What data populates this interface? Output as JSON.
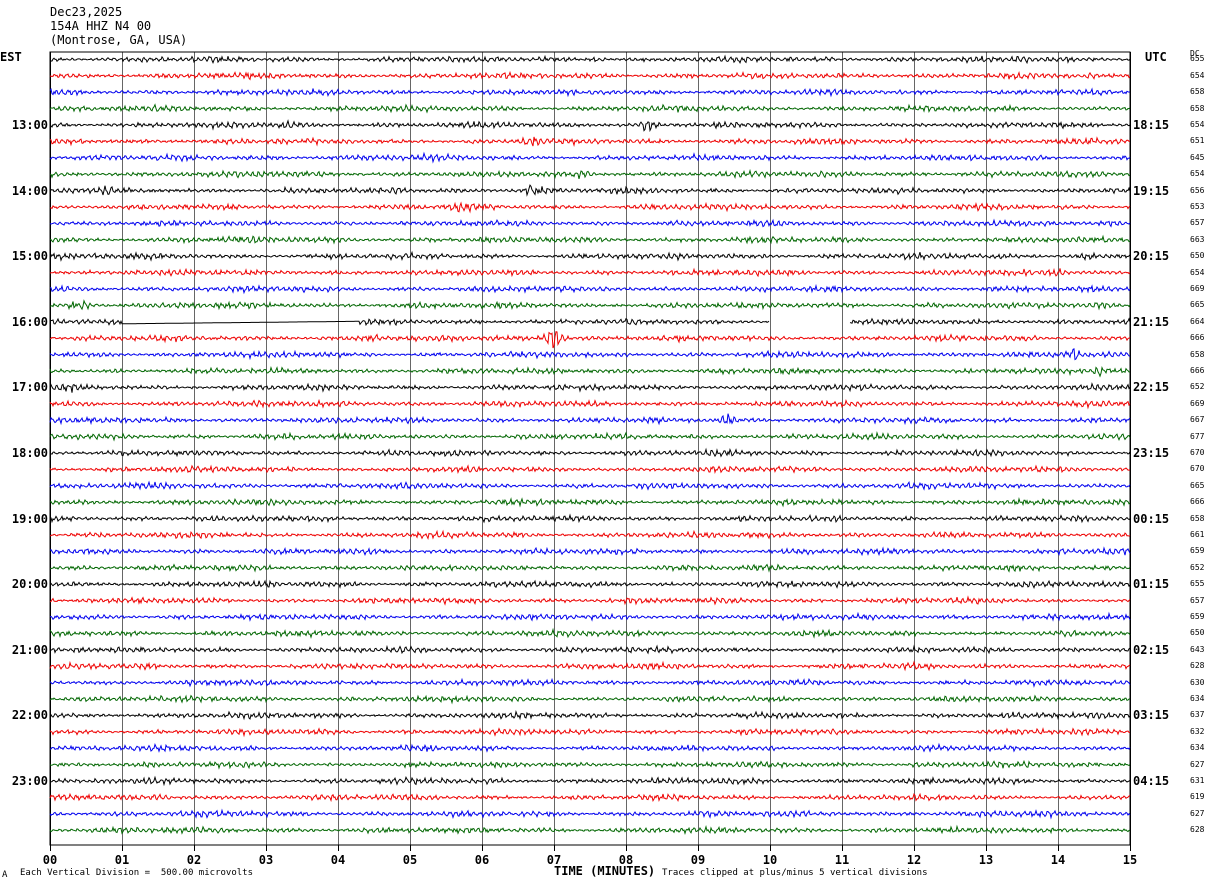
{
  "header": {
    "date": "Dec23,2025",
    "station": "154A HHZ N4 00",
    "location": "(Montrose, GA, USA)",
    "left_zone": "EST",
    "right_zone": "UTC",
    "dc_label": "DC"
  },
  "footer": {
    "vertical_division": "Each Vertical Division =  500.00 microvolts",
    "clip_note": "Traces clipped at plus/minus 5 vertical divisions",
    "corner_mark": "A"
  },
  "colors": {
    "palette": [
      "#000000",
      "#ee0000",
      "#0000ee",
      "#006600"
    ],
    "grid": "#000000"
  },
  "chart_data": {
    "type": "line",
    "title": "154A HHZ N4 00",
    "xlabel": "TIME (MINUTES)",
    "x_ticks": [
      "00",
      "01",
      "02",
      "03",
      "04",
      "05",
      "06",
      "07",
      "08",
      "09",
      "10",
      "11",
      "12",
      "13",
      "14",
      "15"
    ],
    "xlim": [
      0,
      15
    ],
    "trace_minutes": 15,
    "hour_labels_left": [
      "13:00",
      "14:00",
      "15:00",
      "16:00",
      "17:00",
      "18:00",
      "19:00",
      "20:00",
      "21:00",
      "22:00",
      "23:00"
    ],
    "hour_labels_right": [
      "18:15",
      "19:15",
      "20:15",
      "21:15",
      "22:15",
      "23:15",
      "00:15",
      "01:15",
      "02:15",
      "03:15",
      "04:15"
    ],
    "first_hour_label_row": 4,
    "dc_offsets": [
      655,
      654,
      658,
      658,
      654,
      651,
      645,
      654,
      656,
      653,
      657,
      663,
      650,
      654,
      669,
      665,
      664,
      666,
      658,
      666,
      652,
      669,
      667,
      677,
      670,
      670,
      665,
      666,
      658,
      661,
      659,
      652,
      655,
      657,
      659,
      650,
      643,
      628,
      630,
      634,
      637,
      632,
      634,
      627,
      631,
      619,
      627,
      628
    ],
    "events": [
      {
        "row": 0,
        "minute": 7.6,
        "amp": 1.6
      },
      {
        "row": 0,
        "minute": 13.5,
        "amp": 1.4
      },
      {
        "row": 4,
        "minute": 3.3,
        "amp": 1.5
      },
      {
        "row": 4,
        "minute": 8.3,
        "amp": 2.6
      },
      {
        "row": 5,
        "minute": 6.7,
        "amp": 2.2
      },
      {
        "row": 6,
        "minute": 5.2,
        "amp": 1.8
      },
      {
        "row": 7,
        "minute": 7.4,
        "amp": 2.0
      },
      {
        "row": 8,
        "minute": 0.8,
        "amp": 1.8
      },
      {
        "row": 8,
        "minute": 4.8,
        "amp": 1.5
      },
      {
        "row": 8,
        "minute": 6.7,
        "amp": 3.0
      },
      {
        "row": 9,
        "minute": 5.7,
        "amp": 2.4
      },
      {
        "row": 10,
        "minute": 14.8,
        "amp": 1.8
      },
      {
        "row": 11,
        "minute": 1.9,
        "amp": 1.5
      },
      {
        "row": 12,
        "minute": 0.1,
        "amp": 1.6
      },
      {
        "row": 12,
        "minute": 12.0,
        "amp": 1.4
      },
      {
        "row": 12,
        "minute": 14.4,
        "amp": 2.0
      },
      {
        "row": 13,
        "minute": 1.2,
        "amp": 1.6
      },
      {
        "row": 13,
        "minute": 14.0,
        "amp": 2.0
      },
      {
        "row": 15,
        "minute": 0.4,
        "amp": 2.8
      },
      {
        "row": 15,
        "minute": 14.6,
        "amp": 1.6
      },
      {
        "row": 17,
        "minute": 4.5,
        "amp": 1.5
      },
      {
        "row": 17,
        "minute": 7.0,
        "amp": 5.0
      },
      {
        "row": 18,
        "minute": 14.2,
        "amp": 2.4
      },
      {
        "row": 19,
        "minute": 14.6,
        "amp": 2.0
      },
      {
        "row": 20,
        "minute": 0.3,
        "amp": 2.0
      },
      {
        "row": 22,
        "minute": 9.4,
        "amp": 2.8
      },
      {
        "row": 27,
        "minute": 6.9,
        "amp": 1.4
      }
    ],
    "gaps": [
      {
        "row": 16,
        "start": 1.0,
        "end": 4.3,
        "type": "flat"
      },
      {
        "row": 16,
        "start": 10.0,
        "end": 11.1,
        "type": "blank"
      }
    ]
  }
}
